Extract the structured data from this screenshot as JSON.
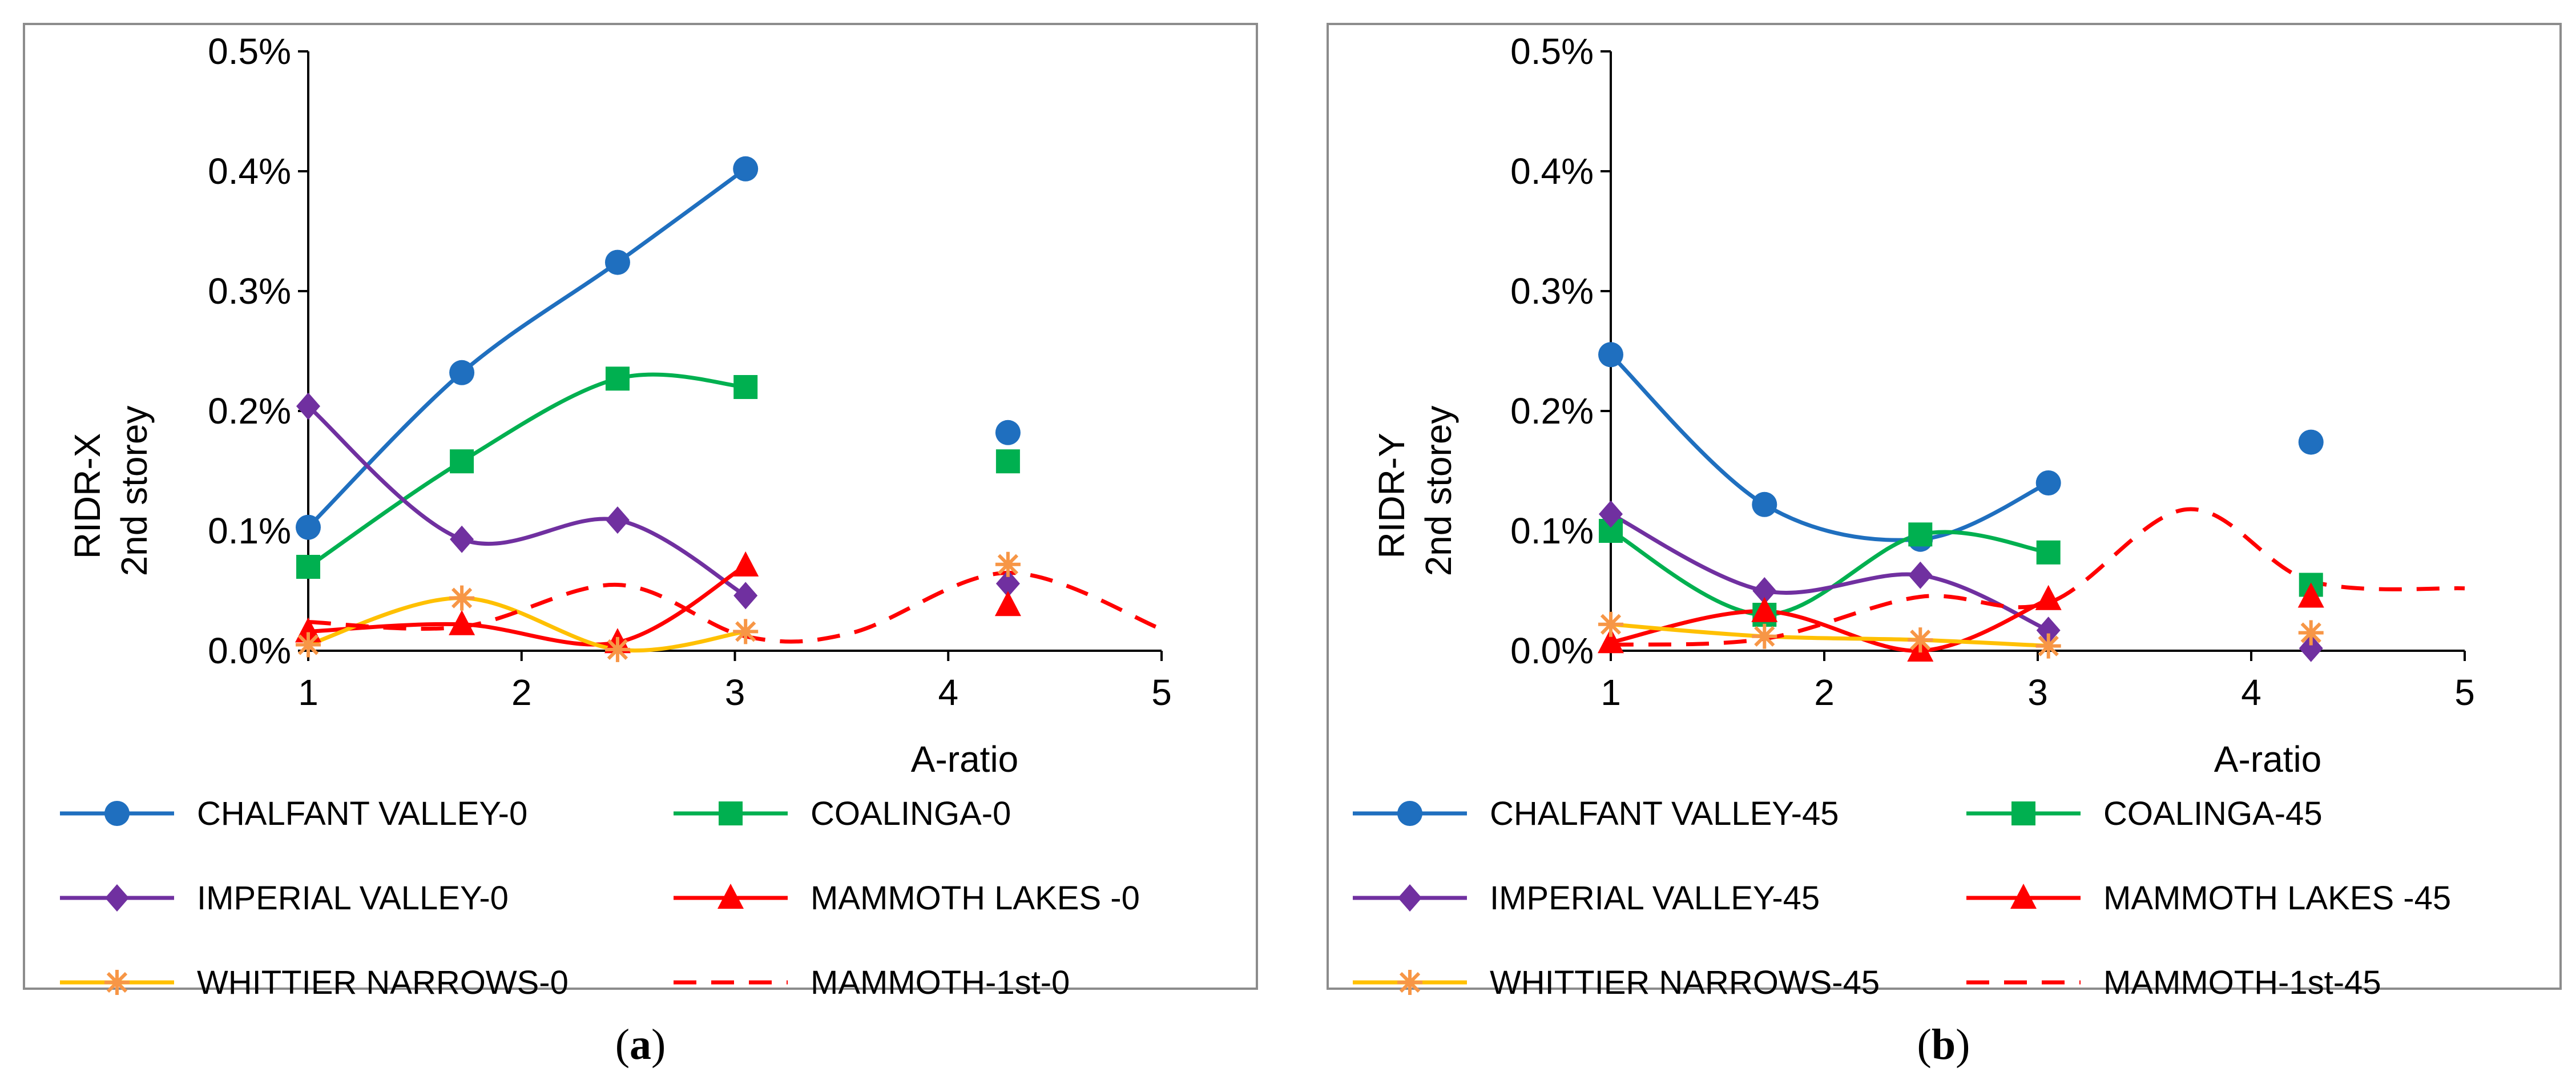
{
  "chart_data": [
    {
      "type": "line",
      "caption": "(a)",
      "caption_letter": "a",
      "xlabel": "A-ratio",
      "ylabel_lines": [
        "RIDR-X",
        "2nd storey"
      ],
      "xlim": [
        1,
        5
      ],
      "ylim": [
        0,
        0.5
      ],
      "x_ticks": [
        "1",
        "2",
        "3",
        "4",
        "5"
      ],
      "y_ticks": [
        "0.0%",
        "0.1%",
        "0.2%",
        "0.3%",
        "0.4%",
        "0.5%"
      ],
      "series": [
        {
          "name": "CHALFANT VALLEY-0",
          "color": "#1f6fbf",
          "marker": "circle",
          "line": "solid",
          "x": [
            1.0,
            1.72,
            2.45,
            3.05
          ],
          "y": [
            0.103,
            0.232,
            0.324,
            0.402
          ],
          "extra_points": {
            "x": [
              4.28
            ],
            "y": [
              0.182
            ]
          }
        },
        {
          "name": "COALINGA-0",
          "color": "#00b050",
          "marker": "square",
          "line": "solid",
          "x": [
            1.0,
            1.72,
            2.45,
            3.05
          ],
          "y": [
            0.07,
            0.158,
            0.227,
            0.22
          ],
          "extra_points": {
            "x": [
              4.28
            ],
            "y": [
              0.158
            ]
          }
        },
        {
          "name": "IMPERIAL VALLEY-0",
          "color": "#7030a0",
          "marker": "diamond",
          "line": "solid",
          "x": [
            1.0,
            1.72,
            2.45,
            3.05
          ],
          "y": [
            0.204,
            0.093,
            0.109,
            0.046
          ],
          "extra_points": {
            "x": [
              4.28
            ],
            "y": [
              0.056
            ]
          }
        },
        {
          "name": "MAMMOTH LAKES -0",
          "color": "#ff0000",
          "marker": "triangle",
          "line": "solid",
          "x": [
            1.0,
            1.72,
            2.45,
            3.05
          ],
          "y": [
            0.016,
            0.022,
            0.007,
            0.071
          ],
          "extra_points": {
            "x": [
              4.28
            ],
            "y": [
              0.038
            ]
          }
        },
        {
          "name": "WHITTIER NARROWS-0",
          "color": "#ffc000",
          "marker": "star",
          "marker_color": "#f79646",
          "line": "solid",
          "x": [
            1.0,
            1.72,
            2.45,
            3.05
          ],
          "y": [
            0.005,
            0.044,
            0.001,
            0.016
          ],
          "extra_points": {
            "x": [
              4.28
            ],
            "y": [
              0.072
            ]
          }
        },
        {
          "name": "MAMMOTH-1st-0",
          "color": "#ff0000",
          "marker": "none",
          "line": "dashed",
          "x": [
            1.0,
            1.72,
            2.45,
            3.05,
            3.55,
            4.28,
            5.0
          ],
          "y": [
            0.024,
            0.02,
            0.055,
            0.012,
            0.015,
            0.065,
            0.018
          ]
        }
      ]
    },
    {
      "type": "line",
      "caption": "(b)",
      "caption_letter": "b",
      "xlabel": "A-ratio",
      "ylabel_lines": [
        "RIDR-Y",
        "2nd storey"
      ],
      "xlim": [
        1,
        5
      ],
      "ylim": [
        0,
        0.5
      ],
      "x_ticks": [
        "1",
        "2",
        "3",
        "4",
        "5"
      ],
      "y_ticks": [
        "0.0%",
        "0.1%",
        "0.2%",
        "0.3%",
        "0.4%",
        "0.5%"
      ],
      "series": [
        {
          "name": "CHALFANT VALLEY-45",
          "color": "#1f6fbf",
          "marker": "circle",
          "line": "solid",
          "x": [
            1.0,
            1.72,
            2.45,
            3.05
          ],
          "y": [
            0.247,
            0.122,
            0.093,
            0.14
          ],
          "extra_points": {
            "x": [
              4.28
            ],
            "y": [
              0.174
            ]
          }
        },
        {
          "name": "COALINGA-45",
          "color": "#00b050",
          "marker": "square",
          "line": "solid",
          "x": [
            1.0,
            1.72,
            2.45,
            3.05
          ],
          "y": [
            0.1,
            0.03,
            0.097,
            0.082
          ],
          "extra_points": {
            "x": [
              4.28
            ],
            "y": [
              0.055
            ]
          }
        },
        {
          "name": "IMPERIAL VALLEY-45",
          "color": "#7030a0",
          "marker": "diamond",
          "line": "solid",
          "x": [
            1.0,
            1.72,
            2.45,
            3.05
          ],
          "y": [
            0.114,
            0.05,
            0.063,
            0.017
          ],
          "extra_points": {
            "x": [
              4.28
            ],
            "y": [
              0.002
            ]
          }
        },
        {
          "name": "MAMMOTH LAKES -45",
          "color": "#ff0000",
          "marker": "triangle",
          "line": "solid",
          "x": [
            1.0,
            1.72,
            2.45,
            3.05
          ],
          "y": [
            0.007,
            0.033,
            0.0,
            0.043
          ],
          "extra_points": {
            "x": [
              4.28
            ],
            "y": [
              0.045
            ]
          }
        },
        {
          "name": "WHITTIER NARROWS-45",
          "color": "#ffc000",
          "marker": "star",
          "marker_color": "#f79646",
          "line": "solid",
          "x": [
            1.0,
            1.72,
            2.45,
            3.05
          ],
          "y": [
            0.022,
            0.012,
            0.009,
            0.004
          ],
          "extra_points": {
            "x": [
              4.28
            ],
            "y": [
              0.015
            ]
          }
        },
        {
          "name": "MAMMOTH-1st-45",
          "color": "#ff0000",
          "marker": "none",
          "line": "dashed",
          "x": [
            1.0,
            1.72,
            2.45,
            3.05,
            3.7,
            4.28,
            5.0
          ],
          "y": [
            0.005,
            0.01,
            0.045,
            0.04,
            0.118,
            0.058,
            0.052
          ]
        }
      ]
    }
  ]
}
